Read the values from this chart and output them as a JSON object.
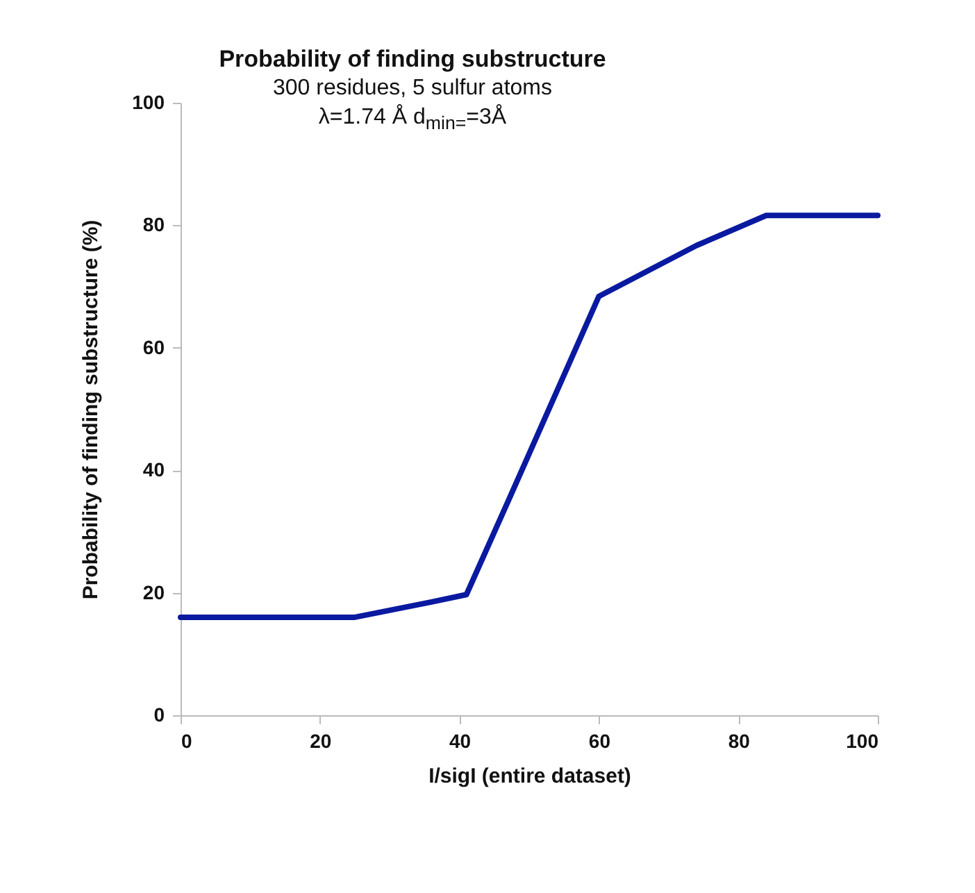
{
  "chart_data": {
    "type": "line",
    "title": "Probability of finding substructure",
    "subtitle": "300 residues, 5 sulfur atoms",
    "annotations": [
      "λ=1.74 Å    d$_{min=}$=3Å"
    ],
    "xlabel": "I/sigI (entire dataset)",
    "ylabel": "Probability of finding substructure (%)",
    "x": [
      0,
      25,
      36,
      41,
      47,
      60,
      74,
      84,
      100
    ],
    "series": [
      {
        "color": "#0a1aa0",
        "values": [
          16,
          16,
          18.5,
          19.7,
          35,
          68.4,
          76.7,
          81.6,
          81.6
        ]
      }
    ],
    "xlim": [
      0,
      100
    ],
    "xticks": [
      0,
      20,
      40,
      60,
      80,
      100
    ],
    "ylim": [
      0,
      100
    ],
    "yticks": [
      0,
      20,
      40,
      60,
      80,
      100
    ],
    "grid": false,
    "legend": false,
    "marker": "none",
    "line_style": "solid"
  }
}
